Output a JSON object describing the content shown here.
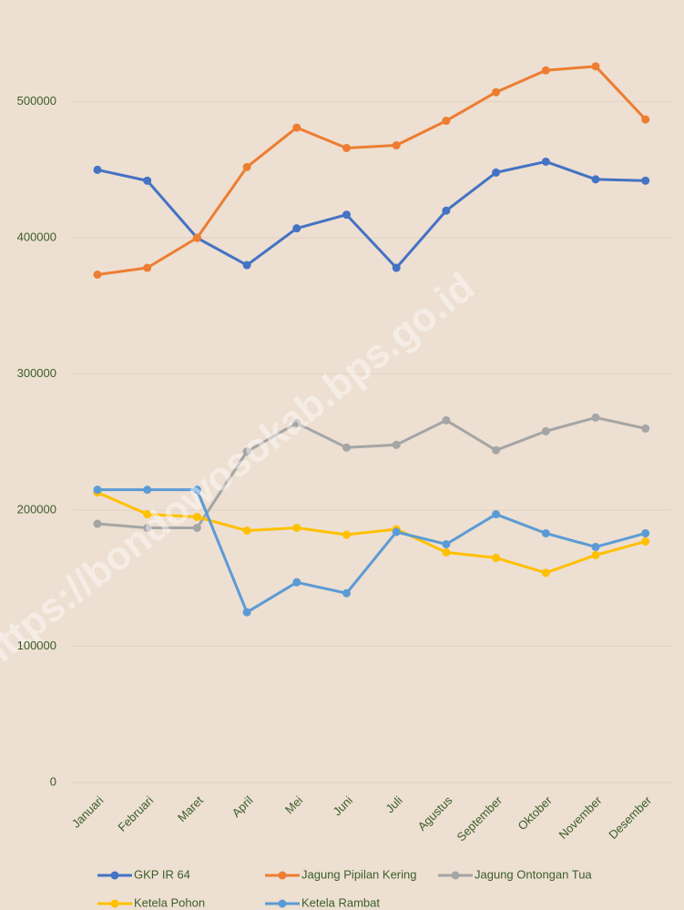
{
  "chart_data": {
    "type": "line",
    "watermark": "https://bondowosokab.bps.go.id",
    "categories": [
      "Januari",
      "Februari",
      "Maret",
      "April",
      "Mei",
      "Juni",
      "Juli",
      "Agustus",
      "September",
      "Oktober",
      "November",
      "Desember"
    ],
    "series": [
      {
        "name": "GKP IR 64",
        "color": "#4472c4",
        "values": [
          450000,
          442000,
          400000,
          380000,
          407000,
          417000,
          378000,
          420000,
          448000,
          456000,
          443000,
          442000
        ]
      },
      {
        "name": "Jagung Pipilan Kering",
        "color": "#ed7d31",
        "values": [
          373000,
          378000,
          400000,
          452000,
          481000,
          466000,
          468000,
          486000,
          507000,
          523000,
          526000,
          487000
        ]
      },
      {
        "name": "Jagung Ontongan Tua",
        "color": "#a5a5a5",
        "values": [
          190000,
          187000,
          187000,
          243000,
          264000,
          246000,
          248000,
          266000,
          244000,
          258000,
          268000,
          260000
        ]
      },
      {
        "name": "Ketela Pohon",
        "color": "#ffc000",
        "values": [
          213000,
          197000,
          195000,
          185000,
          187000,
          182000,
          186000,
          169000,
          165000,
          154000,
          167000,
          177000
        ]
      },
      {
        "name": "Ketela Rambat",
        "color": "#5b9bd5",
        "values": [
          215000,
          215000,
          215000,
          125000,
          147000,
          139000,
          184000,
          175000,
          197000,
          183000,
          173000,
          183000
        ]
      }
    ],
    "ylim": [
      0,
      560000
    ],
    "yticks": [
      0,
      100000,
      200000,
      300000,
      400000,
      500000
    ],
    "grid": true,
    "legend": "bottom"
  }
}
